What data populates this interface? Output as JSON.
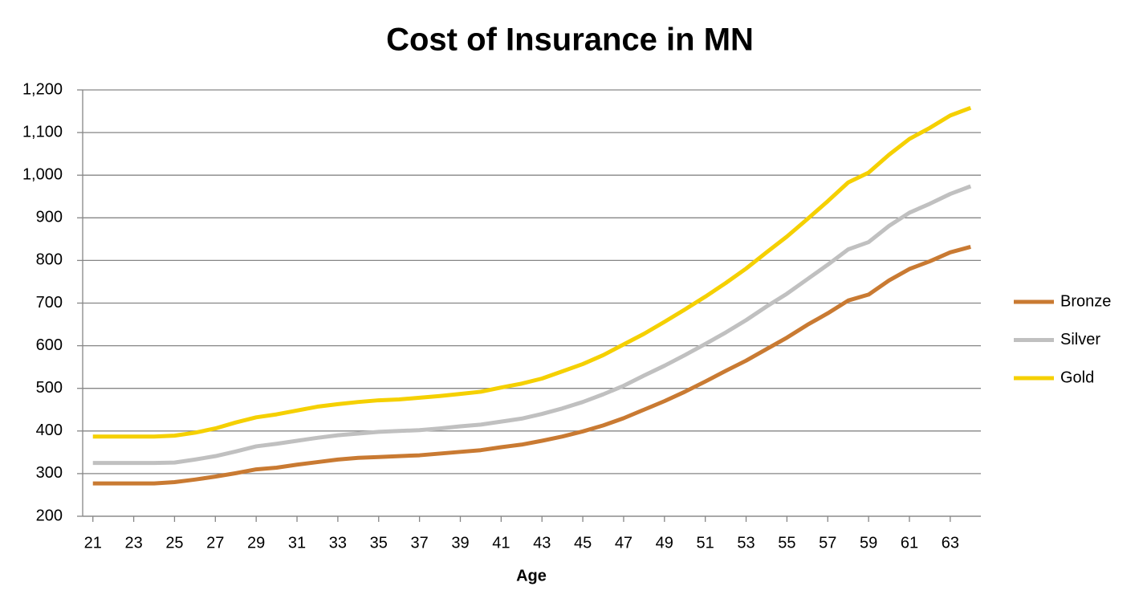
{
  "chart_data": {
    "type": "line",
    "title": "Cost of Insurance in MN",
    "x_label": "Age",
    "x": [
      21,
      22,
      23,
      24,
      25,
      26,
      27,
      28,
      29,
      30,
      31,
      32,
      33,
      34,
      35,
      36,
      37,
      38,
      39,
      40,
      41,
      42,
      43,
      44,
      45,
      46,
      47,
      48,
      49,
      50,
      51,
      52,
      53,
      54,
      55,
      56,
      57,
      58,
      59,
      60,
      61,
      62,
      63,
      64
    ],
    "xlim": [
      20.5,
      64.5
    ],
    "xticks": [
      21,
      23,
      25,
      27,
      29,
      31,
      33,
      35,
      37,
      39,
      41,
      43,
      45,
      47,
      49,
      51,
      53,
      55,
      57,
      59,
      61,
      63
    ],
    "ylim": [
      200,
      1200
    ],
    "yticks": [
      200,
      300,
      400,
      500,
      600,
      700,
      800,
      900,
      {
        "value": 1000,
        "label": "1,000"
      },
      {
        "value": 1100,
        "label": "1,100"
      },
      {
        "value": 1200,
        "label": "1,200"
      }
    ],
    "grid": true,
    "legend": "right",
    "series": [
      {
        "name": "Bronze",
        "color": "#c97a32",
        "values": [
          277,
          277,
          277,
          277,
          280,
          286,
          293,
          301,
          310,
          314,
          321,
          327,
          333,
          337,
          339,
          341,
          343,
          347,
          351,
          355,
          362,
          368,
          377,
          387,
          399,
          413,
          430,
          450,
          470,
          492,
          516,
          541,
          565,
          592,
          619,
          649,
          676,
          706,
          720,
          753,
          780,
          798,
          819,
          832
        ]
      },
      {
        "name": "Silver",
        "color": "#c0c0c0",
        "values": [
          325,
          325,
          325,
          325,
          326,
          333,
          341,
          352,
          364,
          370,
          377,
          384,
          390,
          394,
          398,
          400,
          402,
          406,
          411,
          415,
          422,
          429,
          440,
          453,
          468,
          486,
          506,
          530,
          553,
          578,
          604,
          631,
          660,
          692,
          722,
          756,
          790,
          826,
          843,
          881,
          912,
          933,
          956,
          974
        ]
      },
      {
        "name": "Gold",
        "color": "#f5d000",
        "values": [
          387,
          387,
          387,
          387,
          389,
          396,
          406,
          420,
          432,
          439,
          448,
          457,
          463,
          468,
          472,
          474,
          478,
          482,
          487,
          492,
          502,
          511,
          523,
          540,
          557,
          578,
          603,
          628,
          656,
          685,
          715,
          747,
          781,
          819,
          856,
          897,
          939,
          983,
          1006,
          1048,
          1085,
          1111,
          1140,
          1158
        ]
      }
    ]
  }
}
